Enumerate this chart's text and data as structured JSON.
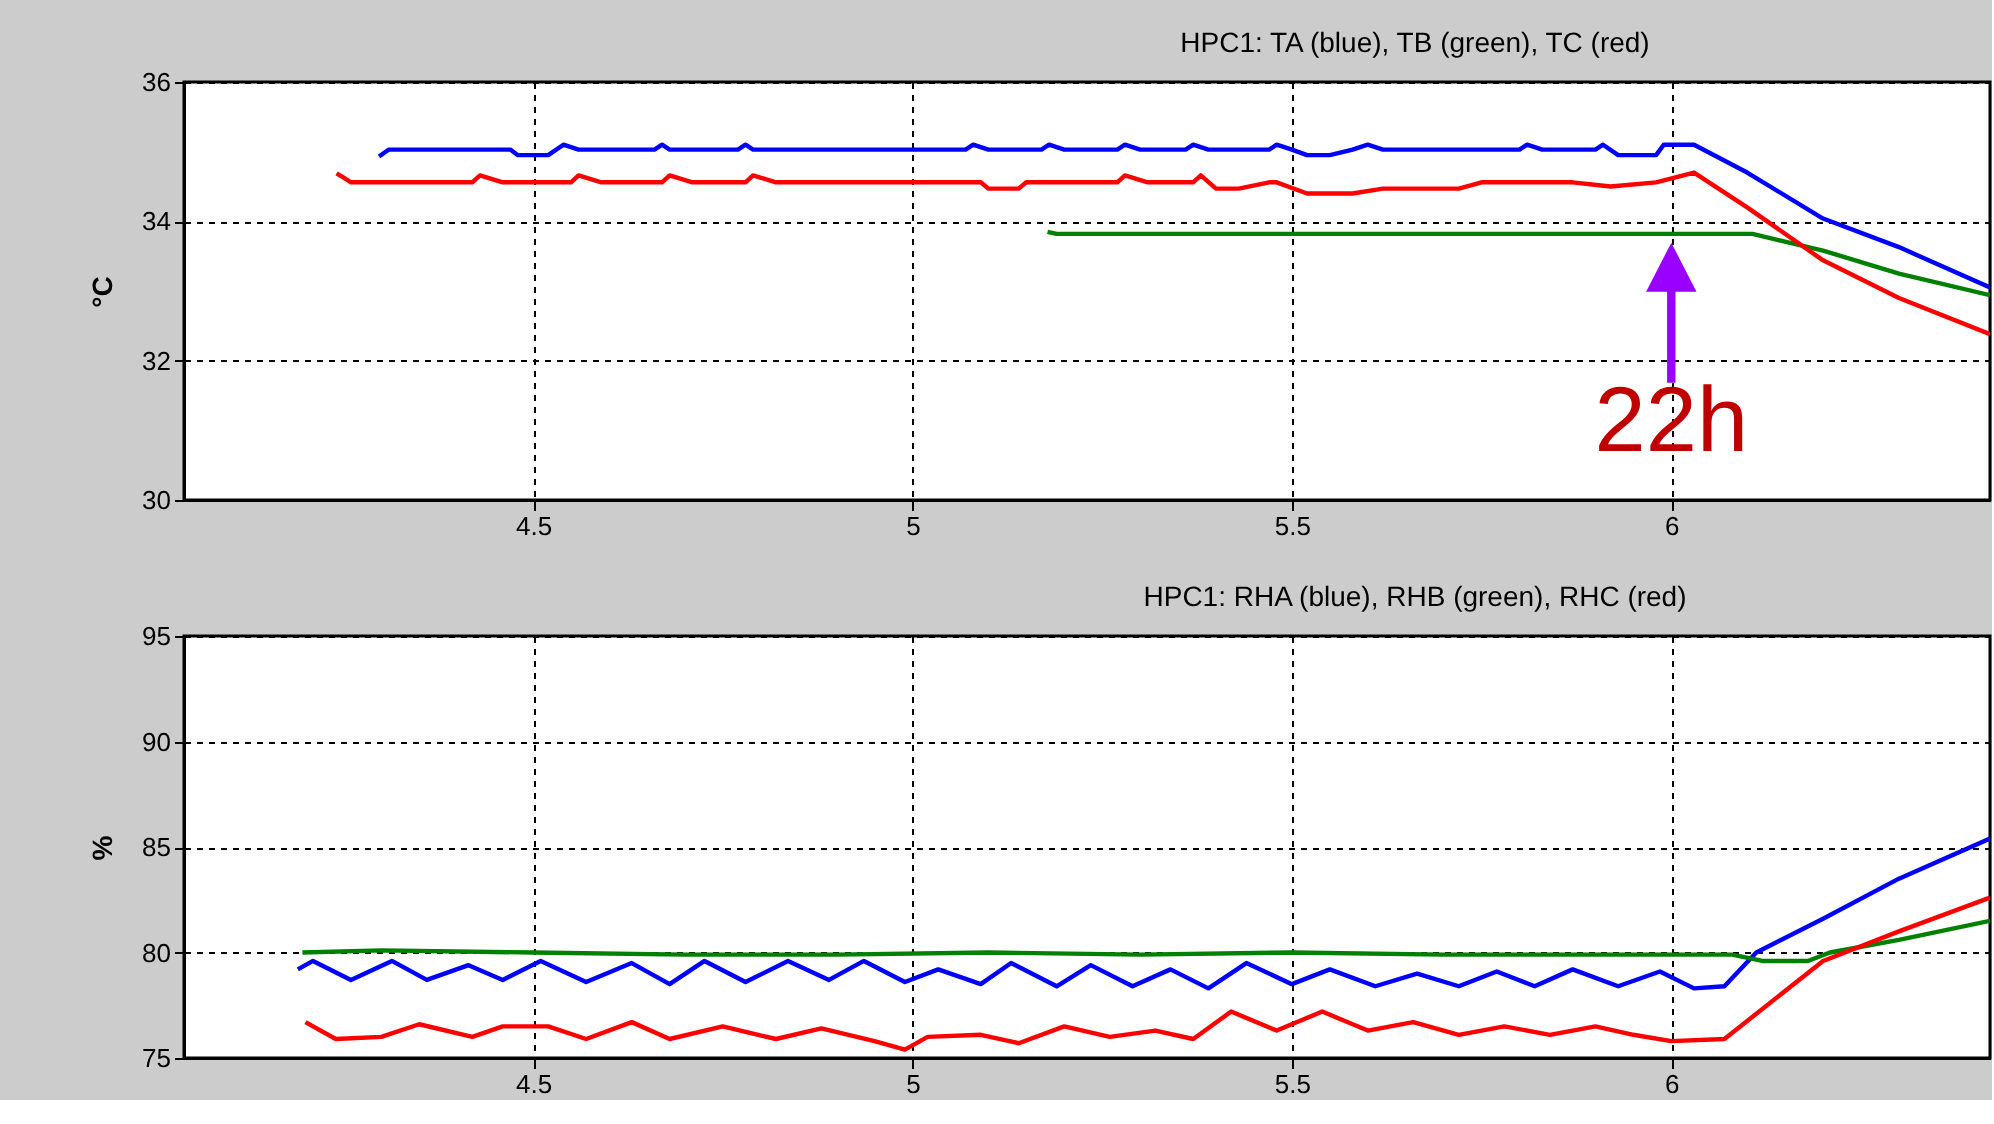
{
  "chart_data": [
    {
      "type": "line",
      "title": "HPC1: TA (blue), TB (green), TC (red)",
      "ylabel": "°C",
      "xlim": [
        4.04,
        6.42
      ],
      "xticks": [
        4.5,
        5,
        5.5,
        6
      ],
      "ylim": [
        30,
        36
      ],
      "yticks": [
        30,
        32,
        34,
        36
      ],
      "grid": true,
      "line_style": "solid",
      "series": [
        {
          "color": "#0000ff",
          "x": [
            4.297,
            4.31,
            4.47,
            4.48,
            4.52,
            4.54,
            4.56,
            4.66,
            4.67,
            4.68,
            4.77,
            4.78,
            4.79,
            5.07,
            5.08,
            5.1,
            5.17,
            5.18,
            5.2,
            5.27,
            5.28,
            5.3,
            5.36,
            5.37,
            5.39,
            5.47,
            5.48,
            5.5,
            5.52,
            5.55,
            5.58,
            5.6,
            5.62,
            5.8,
            5.81,
            5.83,
            5.9,
            5.91,
            5.93,
            5.98,
            5.99,
            6.03,
            6.1,
            6.2,
            6.3,
            6.42
          ],
          "values": [
            34.93,
            35.03,
            35.03,
            34.95,
            34.95,
            35.1,
            35.03,
            35.03,
            35.1,
            35.03,
            35.03,
            35.1,
            35.03,
            35.03,
            35.1,
            35.03,
            35.03,
            35.1,
            35.03,
            35.03,
            35.1,
            35.03,
            35.03,
            35.1,
            35.03,
            35.03,
            35.1,
            35.03,
            34.95,
            34.95,
            35.03,
            35.1,
            35.03,
            35.03,
            35.1,
            35.03,
            35.03,
            35.1,
            34.95,
            34.95,
            35.1,
            35.1,
            34.7,
            34.04,
            33.63,
            33.05
          ]
        },
        {
          "color": "#008000",
          "x": [
            5.178,
            5.19,
            6.107,
            6.2,
            6.3,
            6.42
          ],
          "values": [
            33.85,
            33.82,
            33.82,
            33.58,
            33.25,
            32.94
          ]
        },
        {
          "color": "#ff0000",
          "x": [
            4.241,
            4.25,
            4.26,
            4.42,
            4.43,
            4.46,
            4.55,
            4.56,
            4.59,
            4.67,
            4.68,
            4.71,
            4.78,
            4.79,
            4.82,
            5.09,
            5.1,
            5.14,
            5.15,
            5.18,
            5.27,
            5.28,
            5.31,
            5.37,
            5.38,
            5.4,
            5.43,
            5.47,
            5.48,
            5.52,
            5.58,
            5.62,
            5.72,
            5.75,
            5.87,
            5.92,
            5.98,
            6.03,
            6.1,
            6.2,
            6.3,
            6.42
          ],
          "values": [
            34.69,
            34.63,
            34.56,
            34.56,
            34.66,
            34.56,
            34.56,
            34.66,
            34.56,
            34.56,
            34.66,
            34.56,
            34.56,
            34.66,
            34.56,
            34.56,
            34.47,
            34.47,
            34.56,
            34.56,
            34.56,
            34.66,
            34.56,
            34.56,
            34.66,
            34.47,
            34.47,
            34.56,
            34.56,
            34.4,
            34.4,
            34.47,
            34.47,
            34.56,
            34.56,
            34.5,
            34.56,
            34.7,
            34.2,
            33.44,
            32.9,
            32.38
          ]
        }
      ],
      "annotations": [
        {
          "text": "22h",
          "x": 6,
          "y": 33.75
        }
      ]
    },
    {
      "type": "line",
      "title": "HPC1: RHA (blue), RHB (green), RHC (red)",
      "ylabel": "%",
      "xlim": [
        4.04,
        6.42
      ],
      "xticks": [
        4.5,
        5,
        5.5,
        6
      ],
      "ylim": [
        75,
        95
      ],
      "yticks": [
        75,
        80,
        85,
        90,
        95
      ],
      "grid": true,
      "line_style": "solid",
      "series": [
        {
          "color": "#0000ff",
          "x": [
            4.19,
            4.21,
            4.26,
            4.314,
            4.36,
            4.415,
            4.46,
            4.51,
            4.57,
            4.63,
            4.68,
            4.726,
            4.78,
            4.836,
            4.89,
            4.936,
            4.99,
            5.034,
            5.09,
            5.13,
            5.19,
            5.235,
            5.29,
            5.34,
            5.39,
            5.44,
            5.5,
            5.55,
            5.61,
            5.665,
            5.72,
            5.77,
            5.82,
            5.87,
            5.93,
            5.985,
            6.03,
            6.07,
            6.112,
            6.2,
            6.3,
            6.42
          ],
          "values": [
            79.2,
            79.6,
            78.7,
            79.6,
            78.7,
            79.4,
            78.7,
            79.6,
            78.6,
            79.5,
            78.5,
            79.6,
            78.6,
            79.6,
            78.7,
            79.6,
            78.6,
            79.2,
            78.5,
            79.5,
            78.4,
            79.4,
            78.4,
            79.2,
            78.3,
            79.5,
            78.5,
            79.2,
            78.4,
            79.0,
            78.4,
            79.1,
            78.4,
            79.2,
            78.4,
            79.1,
            78.3,
            78.4,
            80.0,
            81.6,
            83.5,
            85.4
          ]
        },
        {
          "color": "#008000",
          "x": [
            4.196,
            4.3,
            4.5,
            4.7,
            4.9,
            5.1,
            5.3,
            5.5,
            5.7,
            5.9,
            6.08,
            6.12,
            6.18,
            6.209,
            6.3,
            6.42
          ],
          "values": [
            80.0,
            80.1,
            80.0,
            79.9,
            79.9,
            80.0,
            79.9,
            80.0,
            79.9,
            79.9,
            79.9,
            79.6,
            79.6,
            80.0,
            80.6,
            81.5
          ]
        },
        {
          "color": "#ff0000",
          "x": [
            4.2,
            4.24,
            4.3,
            4.35,
            4.42,
            4.46,
            4.52,
            4.57,
            4.63,
            4.68,
            4.75,
            4.82,
            4.88,
            4.95,
            4.99,
            5.02,
            5.09,
            5.14,
            5.2,
            5.26,
            5.32,
            5.37,
            5.42,
            5.48,
            5.54,
            5.6,
            5.66,
            5.72,
            5.78,
            5.84,
            5.9,
            5.95,
            6.0,
            6.07,
            6.2,
            6.3,
            6.42
          ],
          "values": [
            76.7,
            75.9,
            76.0,
            76.6,
            76.0,
            76.5,
            76.5,
            75.9,
            76.7,
            75.9,
            76.5,
            75.9,
            76.4,
            75.8,
            75.4,
            76.0,
            76.1,
            75.7,
            76.5,
            76.0,
            76.3,
            75.9,
            77.2,
            76.3,
            77.2,
            76.3,
            76.7,
            76.1,
            76.5,
            76.1,
            76.5,
            76.1,
            75.8,
            75.9,
            79.6,
            81.0,
            82.6
          ]
        }
      ]
    }
  ]
}
